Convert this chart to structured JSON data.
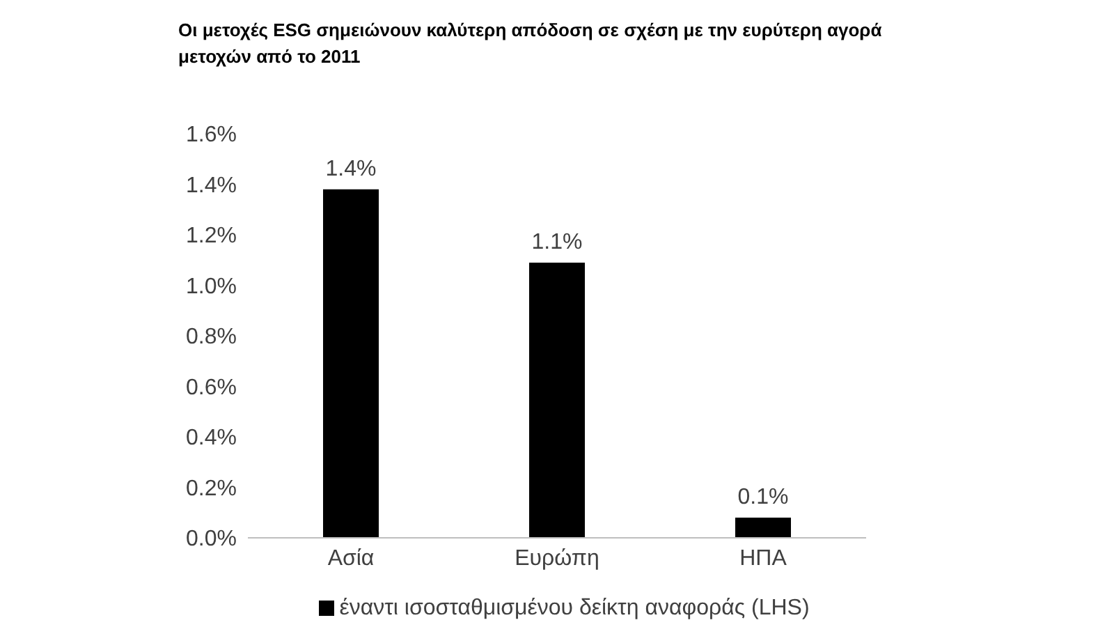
{
  "chart_data": {
    "type": "bar",
    "title": "Οι μετοχές ESG σημειώνουν καλύτερη απόδοση σε σχέση με την ευρύτερη αγορά μετοχών από το 2011",
    "categories": [
      "Ασία",
      "Ευρώπη",
      "ΗΠΑ"
    ],
    "series": [
      {
        "name": "έναντι ισοσταθμισμένου δείκτη αναφοράς (LHS)",
        "color": "#000000",
        "values": [
          1.38,
          1.09,
          0.08
        ],
        "value_labels": [
          "1.4%",
          "1.1%",
          "0.1%"
        ]
      }
    ],
    "ylim": [
      0,
      1.6
    ],
    "yticks": [
      {
        "value": 0,
        "label": "0.0%"
      },
      {
        "value": 0.2,
        "label": "0.2%"
      },
      {
        "value": 0.4,
        "label": "0.4%"
      },
      {
        "value": 0.6,
        "label": "0.6%"
      },
      {
        "value": 0.8,
        "label": "0.8%"
      },
      {
        "value": 1.0,
        "label": "1.0%"
      },
      {
        "value": 1.2,
        "label": "1.2%"
      },
      {
        "value": 1.4,
        "label": "1.4%"
      },
      {
        "value": 1.6,
        "label": "1.6%"
      }
    ],
    "grid": false,
    "legend": "bottom"
  }
}
